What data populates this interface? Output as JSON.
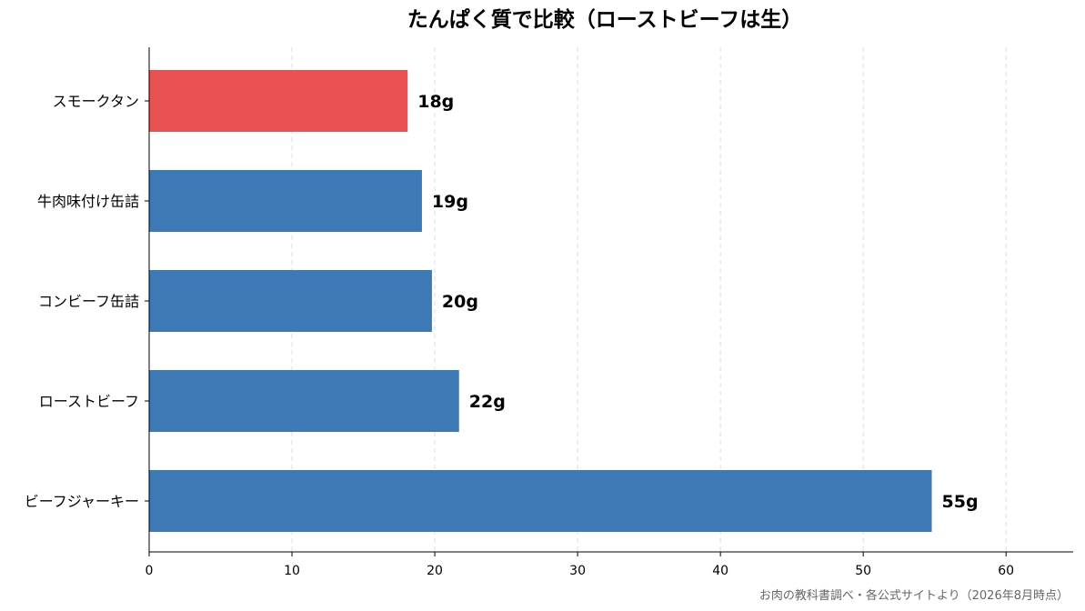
{
  "chart_data": {
    "type": "bar",
    "orientation": "horizontal",
    "title": "たんぱく質で比較（ローストビーフは生）",
    "categories": [
      "スモークタン",
      "牛肉味付け缶詰",
      "コンビーフ缶詰",
      "ローストビーフ",
      "ビーフジャーキー"
    ],
    "values": [
      18.1,
      19.1,
      19.8,
      21.7,
      54.8
    ],
    "value_labels": [
      "18g",
      "19g",
      "20g",
      "22g",
      "55g"
    ],
    "highlight_index": 0,
    "xlim": [
      0,
      64.7
    ],
    "xticks": [
      0,
      10,
      20,
      30,
      40,
      50,
      60
    ],
    "grid": "x-dashed",
    "source_note": "お肉の教科書調べ・各公式サイトより（2026年8月時点）",
    "colors": {
      "default": "#3d79b5",
      "highlight": "#e85252",
      "axis": "#000000",
      "grid": "#dddddd"
    }
  }
}
